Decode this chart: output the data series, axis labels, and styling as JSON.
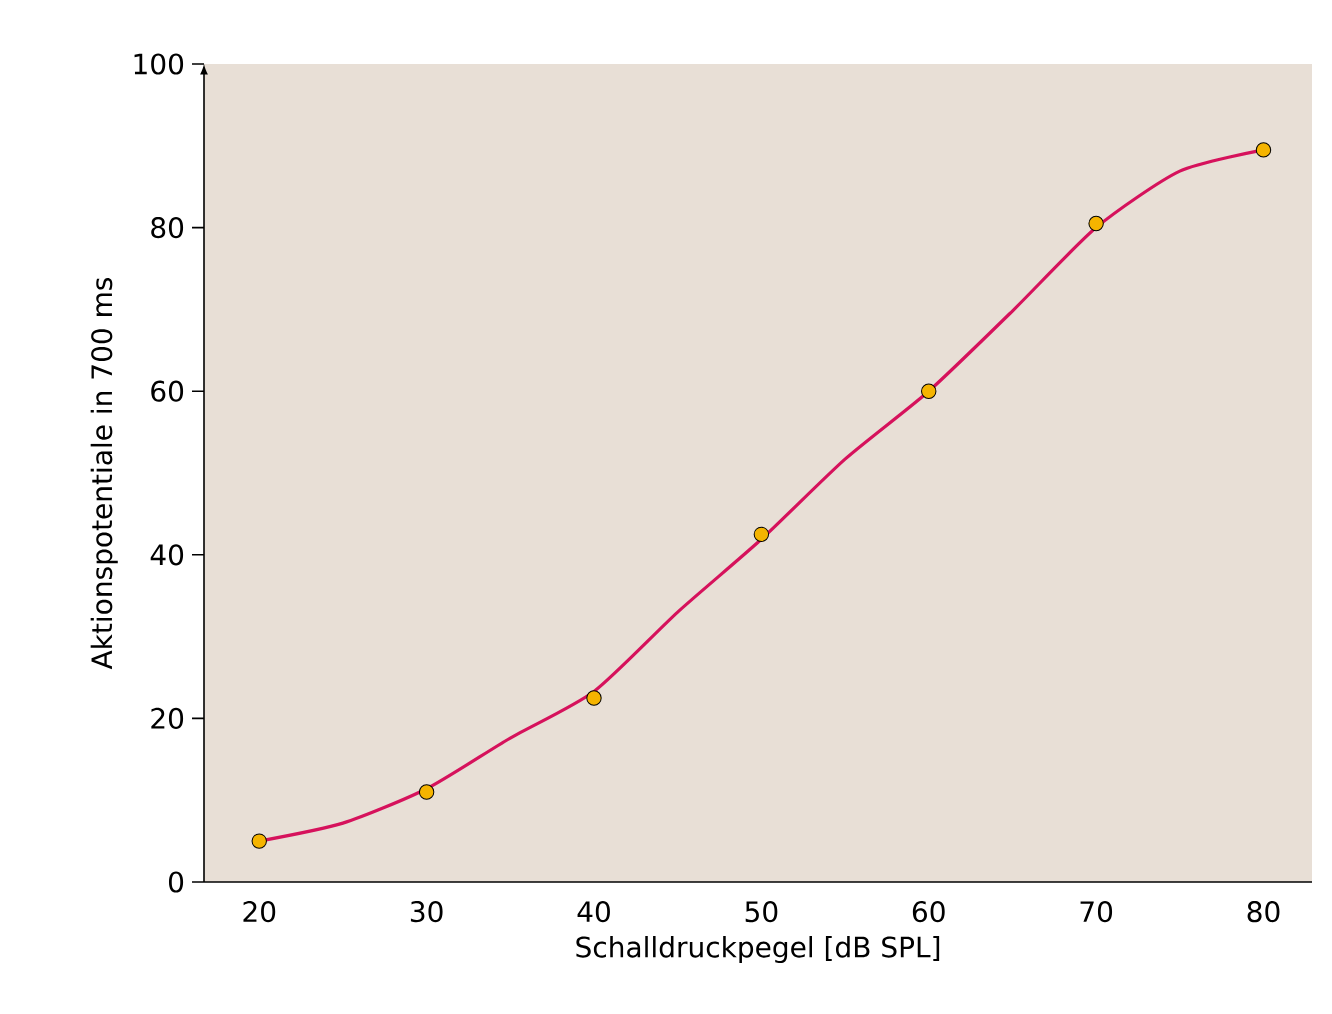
{
  "chart_data": {
    "type": "scatter",
    "xlabel": "Schalldruckpegel [dB SPL]",
    "ylabel": "Aktionspotentiale in 700 ms",
    "xlim": [
      16.7,
      82.9
    ],
    "ylim": [
      0,
      100
    ],
    "xticks": [
      20,
      30,
      40,
      50,
      60,
      70,
      80
    ],
    "yticks": [
      0,
      20,
      40,
      60,
      80,
      100
    ],
    "series": [
      {
        "type": "line",
        "color": "#d6125c",
        "marker": "none",
        "x": [
          20,
          25,
          30,
          35,
          40,
          45,
          50,
          55,
          60,
          65,
          70,
          75,
          80
        ],
        "values": [
          5,
          7.2,
          11.4,
          17.6,
          23.3,
          33,
          41.9,
          51.7,
          60,
          69.8,
          80,
          86.9,
          89.5
        ]
      },
      {
        "color": "#f5b400",
        "marker": "circle",
        "x": [
          20,
          30,
          40,
          50,
          60,
          70,
          80
        ],
        "values": [
          5,
          11,
          22.5,
          42.5,
          60,
          80.5,
          89.5
        ]
      }
    ]
  }
}
